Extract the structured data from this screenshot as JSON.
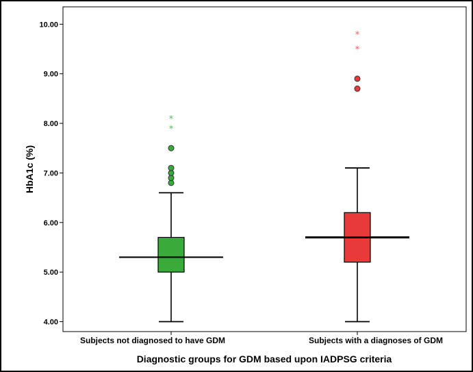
{
  "chart_data": {
    "type": "boxplot",
    "xlabel": "Diagnostic groups for GDM based upon IADPSG criteria",
    "ylabel": "HbA1c (%)",
    "ylim": [
      3.8,
      10.35
    ],
    "yticks": [
      "4.00",
      "5.00",
      "6.00",
      "7.00",
      "8.00",
      "9.00",
      "10.00"
    ],
    "grid": false,
    "categories": [
      "Subjects not diagnosed to have GDM",
      "Subjects with a diagnoses of GDM"
    ],
    "boxes": [
      {
        "category": "Subjects not diagnosed to have GDM",
        "color": "#3aab3a",
        "outlier_color": "#5cb85c",
        "whisker_low": 4.0,
        "q1": 5.0,
        "median": 5.3,
        "q3": 5.7,
        "whisker_high": 6.6,
        "outliers": [
          6.8,
          6.9,
          7.0,
          7.1,
          7.5
        ],
        "extremes": [
          7.9,
          8.1
        ]
      },
      {
        "category": "Subjects with a diagnoses of GDM",
        "color": "#e83a3a",
        "outlier_color": "#e85c5c",
        "whisker_low": 4.0,
        "q1": 5.2,
        "median": 5.7,
        "q3": 6.2,
        "whisker_high": 7.1,
        "outliers": [
          8.7,
          8.9
        ],
        "extremes": [
          9.5,
          9.8
        ]
      }
    ]
  }
}
